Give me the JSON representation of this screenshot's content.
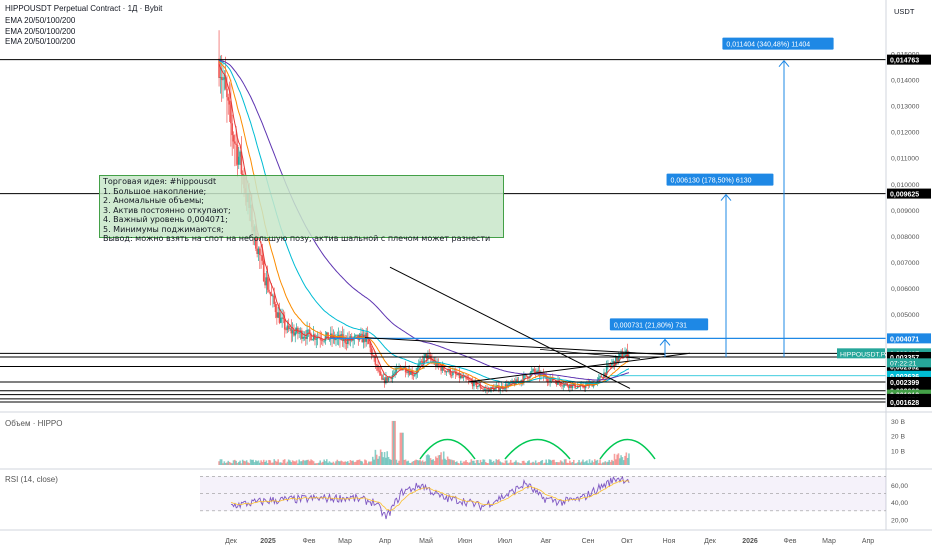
{
  "header": {
    "title": "HIPPOUSDT Perpetual Contract · 1Д · Bybit",
    "ema_lines": [
      "EMA 20/50/100/200",
      "EMA 20/50/100/200",
      "EMA 20/50/100/200"
    ]
  },
  "currency": "USDT",
  "idea_note": {
    "title": "Торговая идея: #hippousdt",
    "lines": [
      "1. Большое накопление;",
      "2. Аномальные объемы;",
      "3. Актив постоянно откупают;",
      "4. Важный уровень 0,004071;",
      "5. Минимумы поджимаются;",
      "Вывод: можно взять на спот на небольшую позу, актив шальной с плечом может разнести"
    ]
  },
  "volume_pane": {
    "label": "Объем · HIPPO",
    "ticks": [
      "30 B",
      "20 B",
      "10 B"
    ]
  },
  "rsi_pane": {
    "label": "RSI (14, close)",
    "ticks": [
      "60,00",
      "40,00",
      "20,00"
    ],
    "upper": 70,
    "lower": 30
  },
  "colors": {
    "positive": "#26a69a",
    "negative": "#ef5350",
    "target": "#1e88e5",
    "ema20": "#e53935",
    "ema50": "#fb8c00",
    "ema100": "#00bcd4",
    "ema200": "#5e35b1",
    "rsi": "#7e57c2"
  },
  "chart_data": {
    "type": "candlestick",
    "x_axis_labels": [
      "Дек",
      "2025",
      "Фев",
      "Мар",
      "Апр",
      "Май",
      "Июн",
      "Июл",
      "Авг",
      "Сен",
      "Окт",
      "Ноя",
      "Дек",
      "2026",
      "Фев",
      "Мар",
      "Апр"
    ],
    "y_axis_ticks": [
      "0,015000",
      "0,014000",
      "0,013000",
      "0,012000",
      "0,011000",
      "0,010000",
      "0,009000",
      "0,008000",
      "0,007000",
      "0,006000",
      "0,005000"
    ],
    "y_range": [
      0.0014,
      0.0159
    ],
    "price_levels": [
      "0,014763",
      "0,009625",
      "0,004071",
      "0,003497",
      "0,003357",
      "0,002992",
      "0,002636",
      "0,002399",
      "0,002063",
      "0,001912",
      "0,001751",
      "0,001628"
    ],
    "current_price": {
      "symbol": "HIPPOUSDT.P",
      "price": "0,003497",
      "countdown": "07:22:21"
    },
    "targets": [
      {
        "label": "0,000731 (21,80%) 731",
        "to": "0,004071"
      },
      {
        "label": "0,006130 (178,50%) 6130",
        "to": "0,009625"
      },
      {
        "label": "0,011404 (340,48%) 11404",
        "to": "0,014763"
      }
    ]
  }
}
